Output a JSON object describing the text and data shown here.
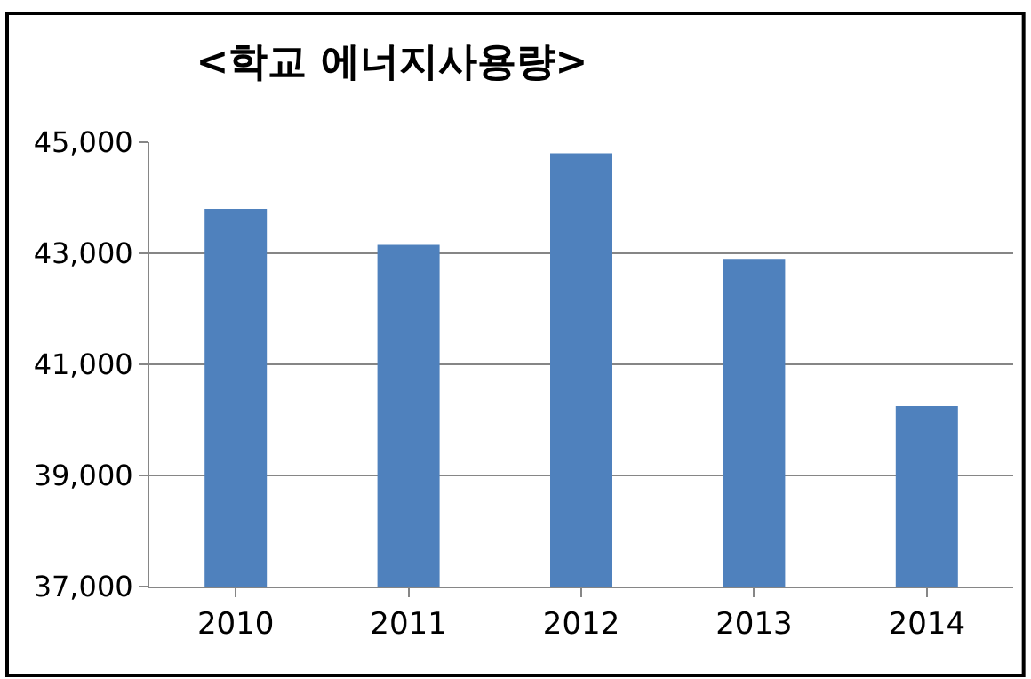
{
  "chart_data": {
    "type": "bar",
    "title": "<학교 에너지사용량>",
    "categories": [
      "2010",
      "2011",
      "2012",
      "2013",
      "2014"
    ],
    "values": [
      43800,
      43150,
      44800,
      42900,
      40250
    ],
    "color": "#4f81bd",
    "ylim": [
      37000,
      45000
    ],
    "yticks": [
      {
        "value": 37000,
        "label": "37,000"
      },
      {
        "value": 39000,
        "label": "39,000"
      },
      {
        "value": 41000,
        "label": "41,000"
      },
      {
        "value": 43000,
        "label": "43,000"
      },
      {
        "value": 45000,
        "label": "45,000"
      }
    ],
    "grid": "y"
  }
}
